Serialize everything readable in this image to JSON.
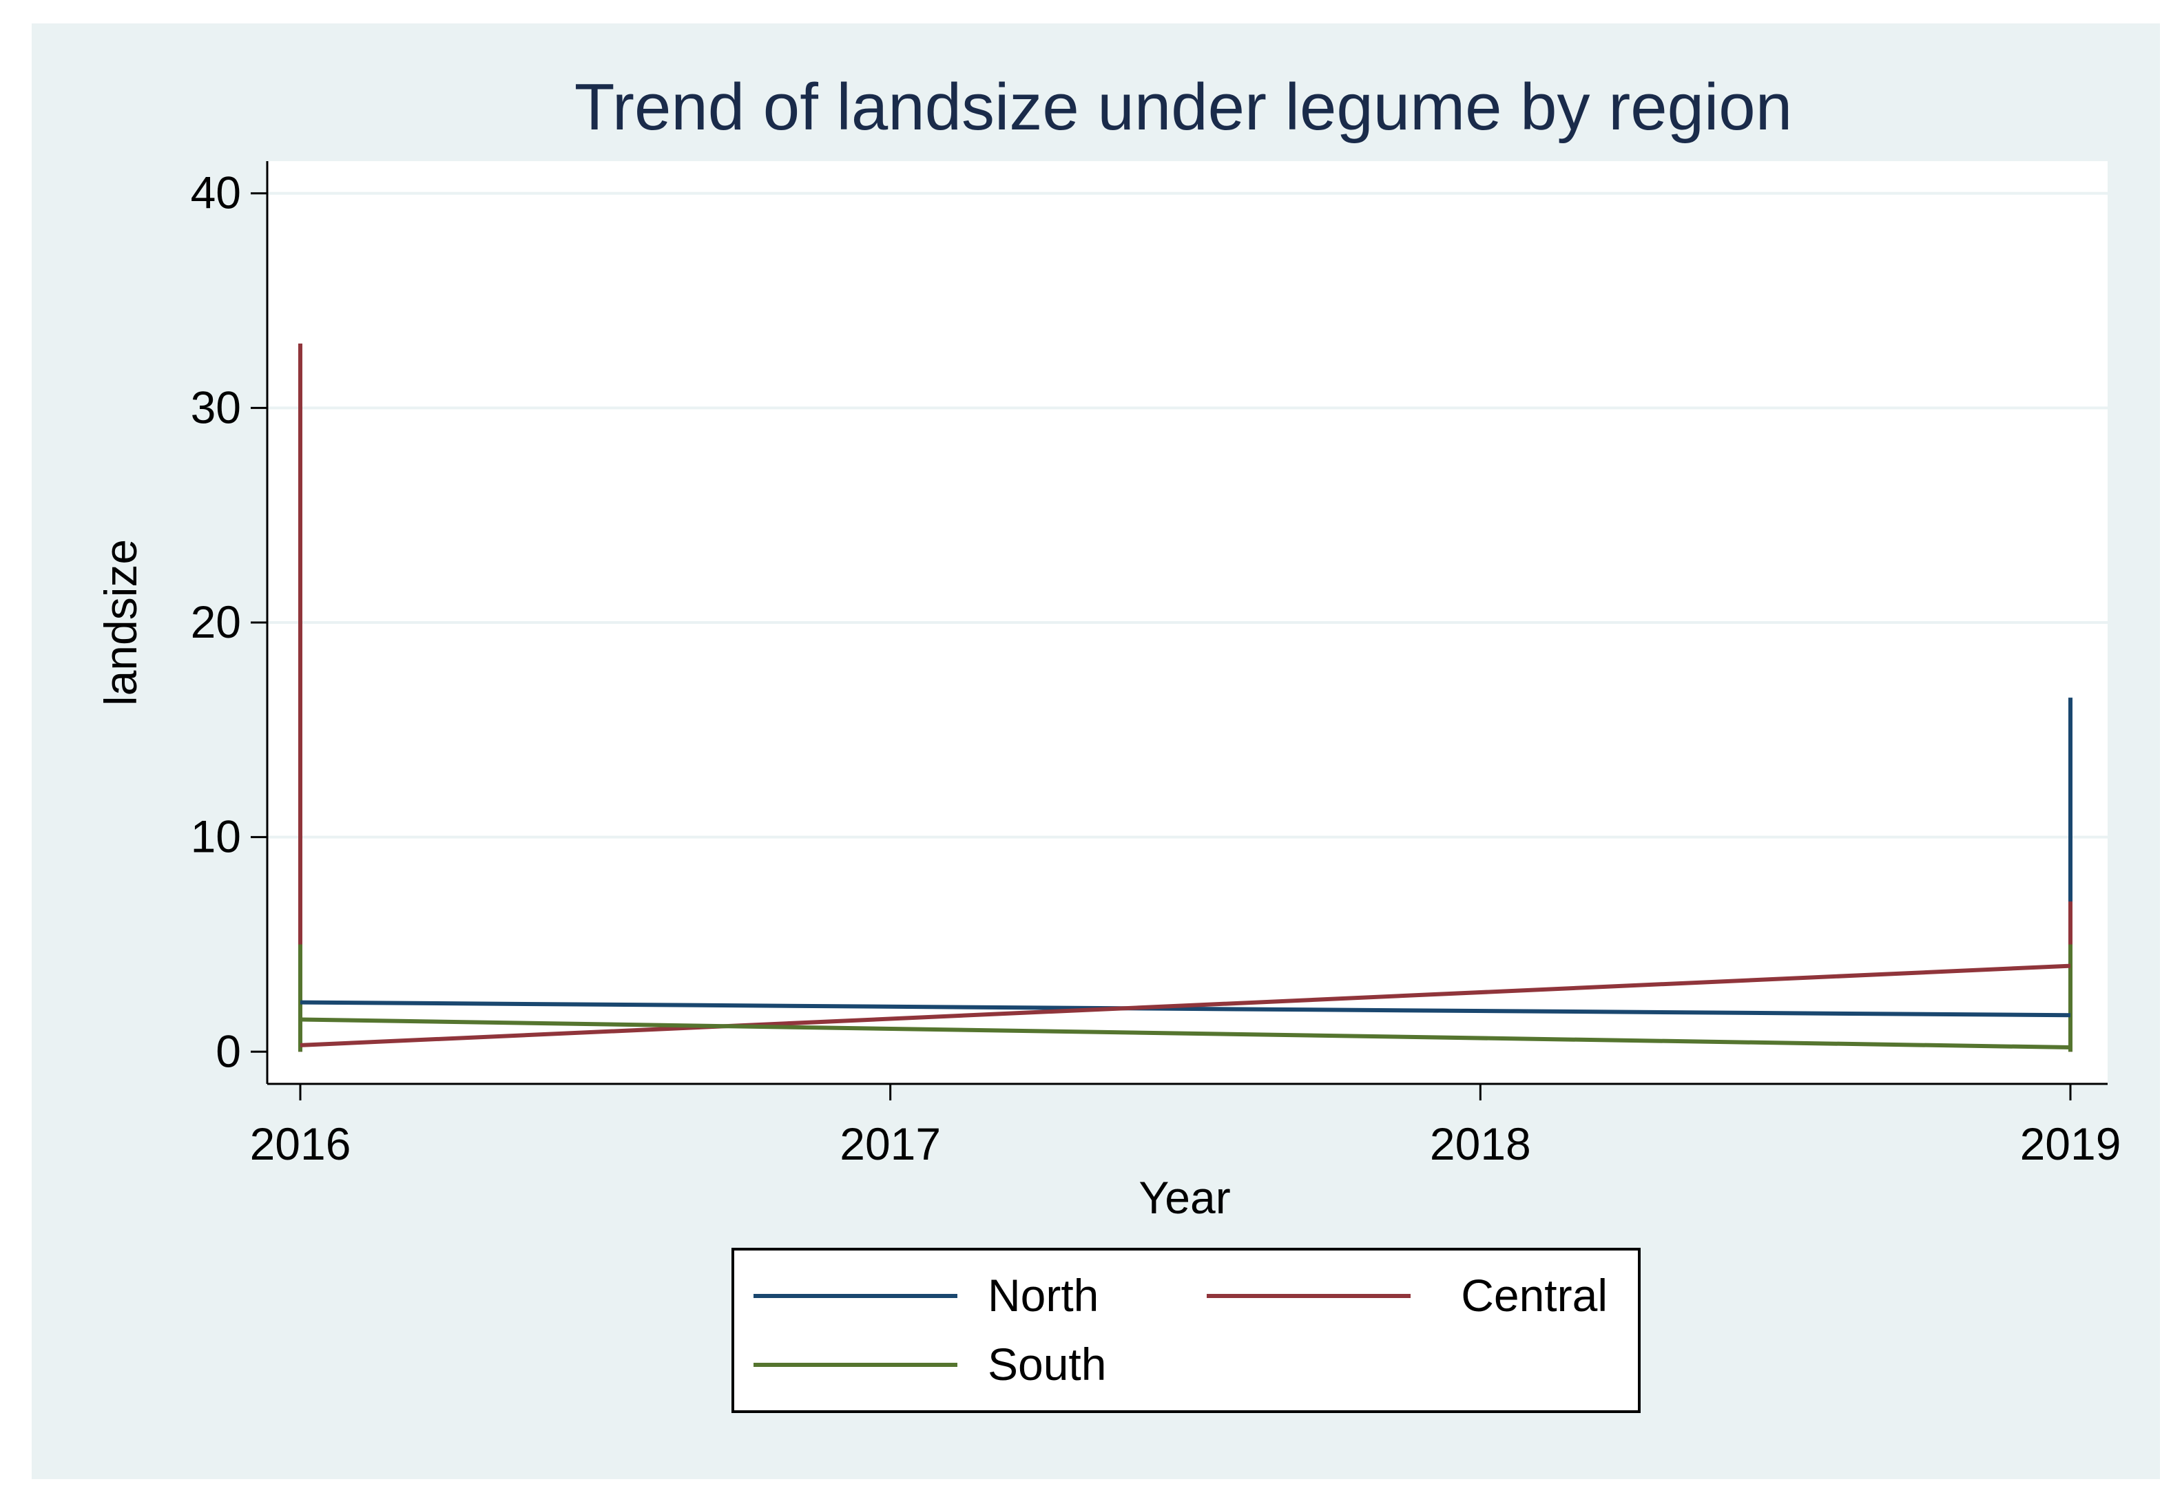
{
  "colors": {
    "outer_background": "#eaf2f3",
    "plot_background": "#ffffff",
    "gridline": "#eaf2f3",
    "axis": "#000000",
    "title": "#1a2b4a",
    "north": "#1a476f",
    "central": "#90353b",
    "south": "#55752f"
  },
  "chart_data": {
    "type": "line",
    "title": "Trend of landsize under legume by region",
    "xlabel": "Year",
    "ylabel": "landsize",
    "xlim": [
      2016,
      2019.06
    ],
    "ylim": [
      -1.5,
      41.5
    ],
    "x_ticks": [
      2016,
      2017,
      2018,
      2019
    ],
    "y_ticks": [
      0,
      10,
      20,
      30,
      40
    ],
    "grid": true,
    "legend_position": "bottom",
    "series": [
      {
        "name": "North",
        "color_key": "north",
        "x": [
          2016,
          2019
        ],
        "values": [
          2.3,
          1.7
        ],
        "ranges": [
          {
            "x": 2016,
            "low": 0,
            "high": 2.3
          },
          {
            "x": 2019,
            "low": 0,
            "high": 16.5
          }
        ]
      },
      {
        "name": "Central",
        "color_key": "central",
        "x": [
          2016,
          2019
        ],
        "values": [
          0.3,
          4.0
        ],
        "ranges": [
          {
            "x": 2016,
            "low": 0,
            "high": 33
          },
          {
            "x": 2019,
            "low": 0,
            "high": 7
          }
        ]
      },
      {
        "name": "South",
        "color_key": "south",
        "x": [
          2016,
          2019
        ],
        "values": [
          1.5,
          0.2
        ],
        "ranges": [
          {
            "x": 2016,
            "low": 0,
            "high": 5
          },
          {
            "x": 2019,
            "low": 0,
            "high": 5
          }
        ]
      }
    ]
  }
}
